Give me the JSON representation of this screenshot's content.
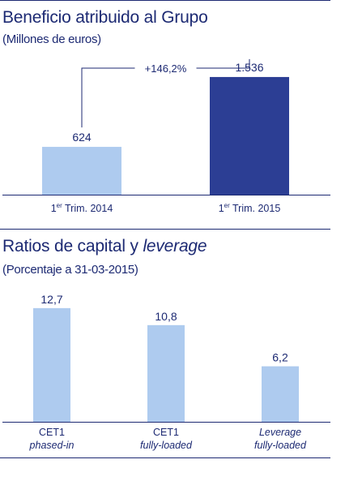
{
  "charts": {
    "beneficio": {
      "title": "Beneficio atribuido al Grupo",
      "subtitle": "(Millones de euros)"
    },
    "ratios": {
      "title_prefix": "Ratios de capital y ",
      "title_italic": "leverage",
      "subtitle": "(Porcentaje a 31-03-2015)"
    }
  },
  "colors": {
    "dark": "#2c3e94",
    "light": "#aecbef",
    "text": "#1d2a73"
  },
  "chart_data": [
    {
      "type": "bar",
      "title": "Beneficio atribuido al Grupo",
      "subtitle": "(Millones de euros)",
      "categories": [
        {
          "main": "1",
          "sup": "er",
          "rest": " Trim. 2014"
        },
        {
          "main": "1",
          "sup": "er",
          "rest": " Trim. 2015"
        }
      ],
      "values": [
        624,
        1536
      ],
      "value_labels": [
        "624",
        "1.536"
      ],
      "bar_colors": [
        "#aecbef",
        "#2c3e94"
      ],
      "annotation": "+146,2%",
      "ylim": [
        0,
        1800
      ]
    },
    {
      "type": "bar",
      "title": "Ratios de capital y leverage",
      "subtitle": "(Porcentaje a 31-03-2015)",
      "categories": [
        {
          "line1": "CET1",
          "line2": "phased-in"
        },
        {
          "line1": "CET1",
          "line2": "fully-loaded"
        },
        {
          "line1": "Leverage",
          "line2": "fully-loaded",
          "line1_italic": true
        }
      ],
      "values": [
        12.7,
        10.8,
        6.2
      ],
      "value_labels": [
        "12,7",
        "10,8",
        "6,2"
      ],
      "bar_colors": [
        "#aecbef",
        "#aecbef",
        "#aecbef"
      ],
      "ylim": [
        0,
        14.5
      ]
    }
  ]
}
